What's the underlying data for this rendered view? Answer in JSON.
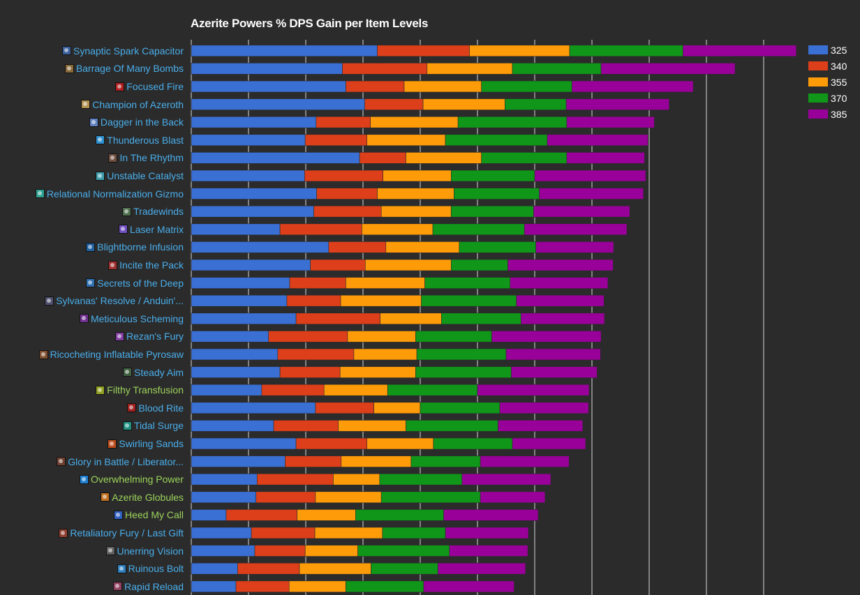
{
  "chart_data": {
    "type": "bar",
    "stacked": true,
    "orientation": "horizontal",
    "title": "Azerite Powers % DPS Gain per Item Levels",
    "xlabel": "",
    "ylabel": "",
    "xlim": [
      0,
      106
    ],
    "grid": true,
    "legend_position": "top-right",
    "categories": [
      "Synaptic Spark Capacitor",
      "Barrage Of Many Bombs",
      "Focused Fire",
      "Champion of Azeroth",
      "Dagger in the Back",
      "Thunderous Blast",
      "In The Rhythm",
      "Unstable Catalyst",
      "Relational Normalization Gizmo",
      "Tradewinds",
      "Laser Matrix",
      "Blightborne Infusion",
      "Incite the Pack",
      "Secrets of the Deep",
      "Sylvanas' Resolve / Anduin'...",
      "Meticulous Scheming",
      "Rezan's Fury",
      "Ricocheting Inflatable Pyrosaw",
      "Steady Aim",
      "Filthy Transfusion",
      "Blood Rite",
      "Tidal Surge",
      "Swirling Sands",
      "Glory in Battle / Liberator...",
      "Overwhelming Power",
      "Azerite Globules",
      "Heed My Call",
      "Retaliatory Fury / Last Gift",
      "Unerring Vision",
      "Ruinous Bolt",
      "Rapid Reload"
    ],
    "label_colors": [
      "#4aaeeb",
      "#4aaeeb",
      "#4aaeeb",
      "#4aaeeb",
      "#4aaeeb",
      "#4aaeeb",
      "#4aaeeb",
      "#4aaeeb",
      "#4aaeeb",
      "#4aaeeb",
      "#4aaeeb",
      "#4aaeeb",
      "#4aaeeb",
      "#4aaeeb",
      "#4aaeeb",
      "#4aaeeb",
      "#4aaeeb",
      "#4aaeeb",
      "#4aaeeb",
      "#9bd35a",
      "#4aaeeb",
      "#4aaeeb",
      "#4aaeeb",
      "#4aaeeb",
      "#9bd35a",
      "#9bd35a",
      "#9bd35a",
      "#4aaeeb",
      "#4aaeeb",
      "#4aaeeb",
      "#4aaeeb"
    ],
    "icon_names": [
      "spark-capacitor-icon",
      "bomb-icon",
      "focused-fire-icon",
      "champion-icon",
      "dagger-icon",
      "thunder-icon",
      "rhythm-icon",
      "catalyst-icon",
      "gizmo-icon",
      "tradewinds-icon",
      "laser-icon",
      "blightborne-icon",
      "pack-icon",
      "deep-icon",
      "banner-icon",
      "scheming-icon",
      "rezan-icon",
      "pyrosaw-icon",
      "aim-icon",
      "transfusion-icon",
      "blood-rite-icon",
      "tidal-icon",
      "sand-icon",
      "glory-icon",
      "power-icon",
      "globule-icon",
      "heed-icon",
      "retaliatory-icon",
      "vision-icon",
      "bolt-icon",
      "reload-icon"
    ],
    "icon_colors": [
      "#3a5f9a",
      "#8a6a3a",
      "#b02020",
      "#b09050",
      "#6080c0",
      "#3090d0",
      "#705040",
      "#40a0b0",
      "#30a090",
      "#507050",
      "#7050c0",
      "#2060a0",
      "#a03030",
      "#3070b0",
      "#505070",
      "#703090",
      "#8040a0",
      "#805030",
      "#406040",
      "#90a020",
      "#a02020",
      "#209080",
      "#c05020",
      "#704030",
      "#2080d0",
      "#c07020",
      "#3060c0",
      "#904030",
      "#606060",
      "#3080c0",
      "#904060"
    ],
    "series": [
      {
        "name": "325",
        "color": "#3a6fd4",
        "values": [
          32.5,
          26.4,
          27.0,
          30.3,
          21.8,
          19.9,
          29.4,
          19.8,
          21.9,
          21.4,
          15.5,
          24.0,
          20.8,
          17.2,
          16.7,
          18.3,
          13.5,
          15.1,
          15.5,
          12.3,
          21.7,
          14.4,
          18.3,
          16.4,
          11.5,
          11.3,
          6.1,
          10.5,
          11.1,
          8.1,
          7.8
        ]
      },
      {
        "name": "340",
        "color": "#dc3f1a",
        "values": [
          16.1,
          14.8,
          10.2,
          10.2,
          9.5,
          10.8,
          8.1,
          13.7,
          10.6,
          11.8,
          14.3,
          10.0,
          9.6,
          9.8,
          9.4,
          14.7,
          13.8,
          13.3,
          10.5,
          10.9,
          10.2,
          11.3,
          12.4,
          9.8,
          13.3,
          10.4,
          12.4,
          11.1,
          8.8,
          10.8,
          9.3
        ]
      },
      {
        "name": "355",
        "color": "#fe9b08",
        "values": [
          17.5,
          14.9,
          13.5,
          14.3,
          15.3,
          13.7,
          13.2,
          11.9,
          13.4,
          12.2,
          12.4,
          12.8,
          15.0,
          13.8,
          14.1,
          10.7,
          11.9,
          11.0,
          13.2,
          11.1,
          8.1,
          11.8,
          11.6,
          12.2,
          8.1,
          11.5,
          10.2,
          11.8,
          9.2,
          12.5,
          9.9
        ]
      },
      {
        "name": "370",
        "color": "#109619",
        "values": [
          19.8,
          15.5,
          15.8,
          10.7,
          19.0,
          17.8,
          14.9,
          14.6,
          14.9,
          14.4,
          16.0,
          13.4,
          9.9,
          14.9,
          16.6,
          13.9,
          13.3,
          15.6,
          16.7,
          15.7,
          13.9,
          16.1,
          13.8,
          12.1,
          14.4,
          17.3,
          15.4,
          11.0,
          16.0,
          11.7,
          13.6
        ]
      },
      {
        "name": "385",
        "color": "#990099",
        "values": [
          19.8,
          23.4,
          21.2,
          18.0,
          15.3,
          17.6,
          13.6,
          19.4,
          18.2,
          16.8,
          17.9,
          13.6,
          18.4,
          17.1,
          15.3,
          14.6,
          19.1,
          16.5,
          15.0,
          19.5,
          15.5,
          14.8,
          12.8,
          15.5,
          15.5,
          11.3,
          16.5,
          14.5,
          13.7,
          15.3,
          15.8
        ]
      }
    ]
  }
}
